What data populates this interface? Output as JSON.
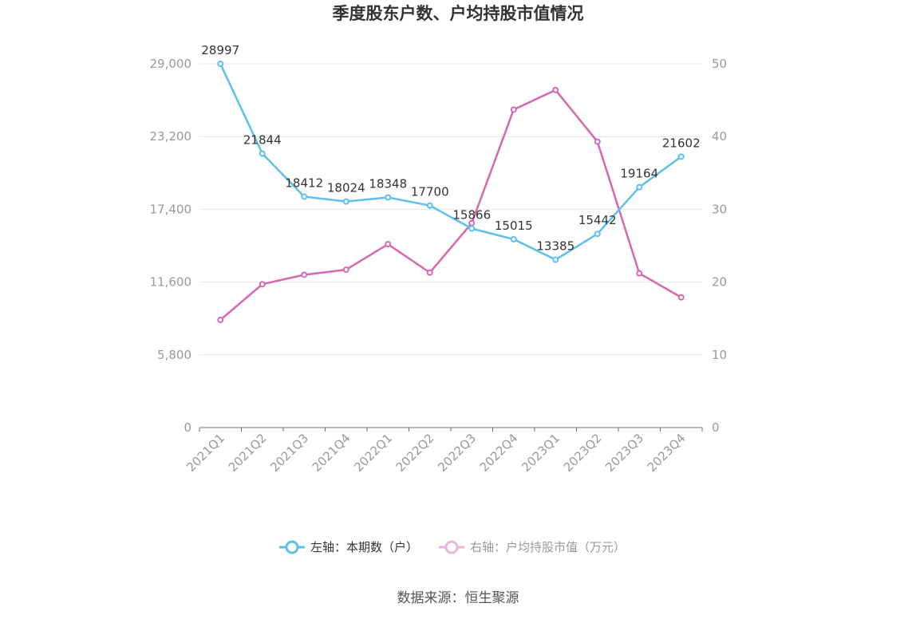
{
  "chart_data": {
    "type": "line",
    "title": "季度股东户数、户均持股市值情况",
    "categories": [
      "2021Q1",
      "2021Q2",
      "2021Q3",
      "2021Q4",
      "2022Q1",
      "2022Q2",
      "2022Q3",
      "2022Q4",
      "2023Q1",
      "2023Q2",
      "2023Q3",
      "2023Q4"
    ],
    "left_axis": {
      "ticks": [
        "0",
        "5,800",
        "11,600",
        "17,400",
        "23,200",
        "29,000"
      ],
      "ylim": [
        0,
        29000
      ]
    },
    "right_axis": {
      "ticks": [
        "0",
        "10",
        "20",
        "30",
        "40",
        "50"
      ],
      "ylim": [
        0,
        50
      ]
    },
    "series": [
      {
        "name": "左轴：本期数（户）",
        "axis": "left",
        "color": "#5bc0eb",
        "values": [
          28997,
          21844,
          18412,
          18024,
          18348,
          17700,
          15866,
          15015,
          13385,
          15442,
          19164,
          21602
        ],
        "labels": [
          "28997",
          "21844",
          "18412",
          "18024",
          "18348",
          "17700",
          "15866",
          "15015",
          "13385",
          "15442",
          "19164",
          "21602"
        ]
      },
      {
        "name": "右轴：户均持股市值（万元）",
        "axis": "right",
        "color": "#d667b0",
        "values": [
          14.8,
          19.7,
          21.0,
          21.7,
          25.2,
          21.3,
          28.1,
          43.7,
          46.4,
          39.3,
          21.2,
          17.9
        ]
      }
    ],
    "grid": true,
    "legend": "bottom"
  },
  "source": "数据来源：恒生聚源"
}
